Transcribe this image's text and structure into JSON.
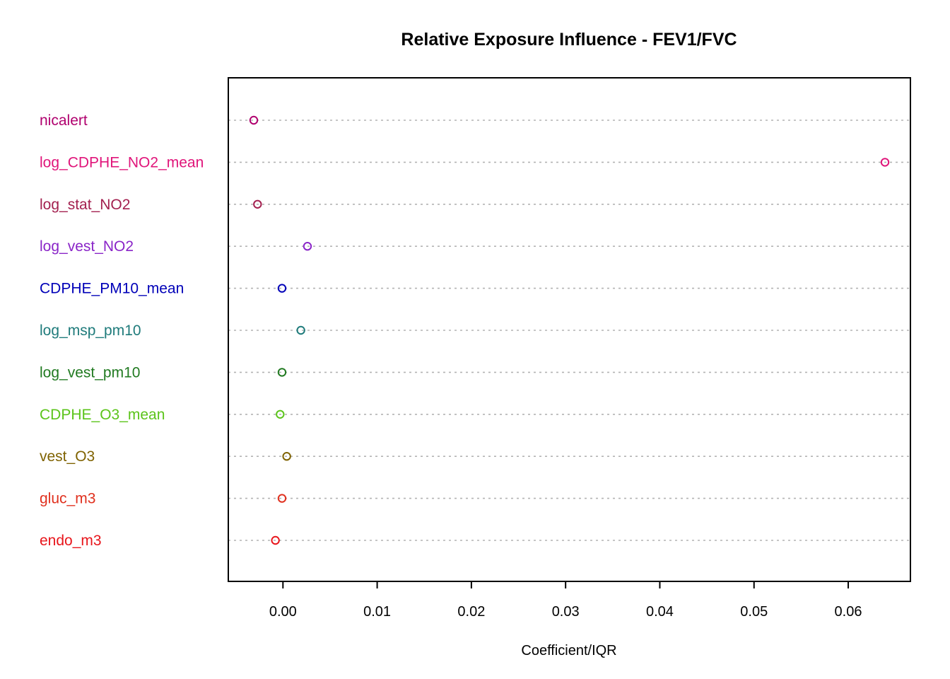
{
  "chart_data": {
    "type": "scatter",
    "title": "Relative Exposure Influence - FEV1/FVC",
    "xlabel": "Coefficient/IQR",
    "ylabel": "",
    "xlim": [
      -0.0058,
      0.0666
    ],
    "xticks": [
      "0.00",
      "0.01",
      "0.02",
      "0.03",
      "0.04",
      "0.05",
      "0.06"
    ],
    "xtick_values": [
      0.0,
      0.01,
      0.02,
      0.03,
      0.04,
      0.05,
      0.06
    ],
    "grid": "dotted horizontal per category",
    "marker": "open circle",
    "points": [
      {
        "label": "nicalert",
        "value": -0.0031,
        "color": "#B0006E"
      },
      {
        "label": "log_CDPHE_NO2_mean",
        "value": 0.0639,
        "color": "#E0157A"
      },
      {
        "label": "log_stat_NO2",
        "value": -0.0027,
        "color": "#A3204F"
      },
      {
        "label": "log_vest_NO2",
        "value": 0.0026,
        "color": "#8A25C8"
      },
      {
        "label": "CDPHE_PM10_mean",
        "value": -0.0001,
        "color": "#0000B8"
      },
      {
        "label": "log_msp_pm10",
        "value": 0.0019,
        "color": "#1F7B7B"
      },
      {
        "label": "log_vest_pm10",
        "value": -0.0001,
        "color": "#217A21"
      },
      {
        "label": "CDPHE_O3_mean",
        "value": -0.0003,
        "color": "#5BC41A"
      },
      {
        "label": "vest_O3",
        "value": 0.0004,
        "color": "#7F6200"
      },
      {
        "label": "gluc_m3",
        "value": -0.0001,
        "color": "#E0301E"
      },
      {
        "label": "endo_m3",
        "value": -0.0008,
        "color": "#E8151B"
      }
    ]
  }
}
